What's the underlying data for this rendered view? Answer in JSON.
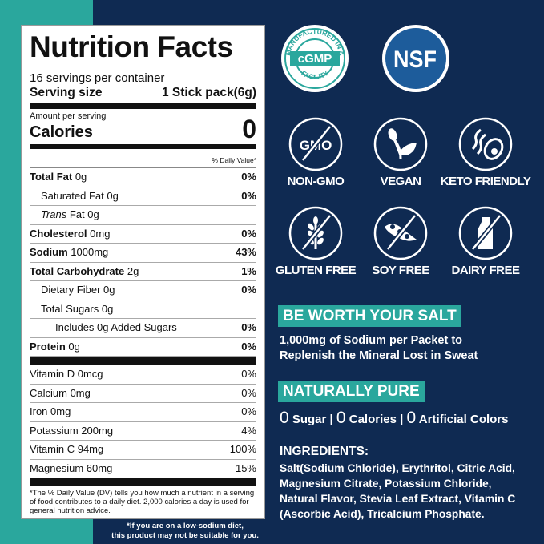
{
  "colors": {
    "teal": "#2aa79d",
    "navy": "#0f2a52",
    "nsf_blue": "#1d5c9b"
  },
  "label": {
    "title": "Nutrition Facts",
    "servings": "16 servings per container",
    "serving_size_label": "Serving size",
    "serving_size_value": "1 Stick pack(6g)",
    "amount_per_serving": "Amount per serving",
    "calories_label": "Calories",
    "calories_value": "0",
    "dv_header": "% Daily Value*",
    "rows": [
      {
        "name": "Total Fat",
        "amount": "0g",
        "dv": "0%"
      },
      {
        "name": "Saturated Fat",
        "amount": "0g",
        "dv": "0%"
      },
      {
        "name": "Trans",
        "amount": "Fat 0g",
        "dv": ""
      },
      {
        "name": "Cholesterol",
        "amount": "0mg",
        "dv": "0%"
      },
      {
        "name": "Sodium",
        "amount": "1000mg",
        "dv": "43%"
      },
      {
        "name": "Total Carbohydrate",
        "amount": "2g",
        "dv": "1%"
      },
      {
        "name": "Dietary Fiber",
        "amount": "0g",
        "dv": "0%"
      },
      {
        "name": "Total Sugars",
        "amount": "0g",
        "dv": ""
      },
      {
        "name": "Includes 0g Added Sugars",
        "amount": "",
        "dv": "0%"
      },
      {
        "name": "Protein",
        "amount": "0g",
        "dv": "0%"
      }
    ],
    "vitamins": [
      {
        "name": "Vitamin D 0mcg",
        "dv": "0%"
      },
      {
        "name": "Calcium 0mg",
        "dv": "0%"
      },
      {
        "name": "Iron 0mg",
        "dv": "0%"
      },
      {
        "name": "Potassium 200mg",
        "dv": "4%"
      },
      {
        "name": "Vitamin C 94mg",
        "dv": "100%"
      },
      {
        "name": "Magnesium 60mg",
        "dv": "15%"
      }
    ],
    "footnote": "*The % Daily Value (DV) tells you how much a nutrient in a serving of food contributes to a daily diet. 2,000 calories a day is used for general nutrition advice."
  },
  "sodium_note_1": "*If you are on a low-sodium diet,",
  "sodium_note_2": "this product may not be suitable for you.",
  "badges": {
    "cgmp_center": "cGMP",
    "cgmp_ring": "MANUFACTURED IN A",
    "cgmp_ring_bottom": "FACILITY",
    "nsf": "NSF"
  },
  "icons": [
    {
      "icon": "gmo-crossed-icon",
      "label": "NON-GMO"
    },
    {
      "icon": "leaf-icon",
      "label": "VEGAN"
    },
    {
      "icon": "bacon-avocado-icon",
      "label": "KETO FRIENDLY"
    },
    {
      "icon": "wheat-crossed-icon",
      "label": "GLUTEN FREE"
    },
    {
      "icon": "soybean-crossed-icon",
      "label": "SOY FREE"
    },
    {
      "icon": "milk-bottle-crossed-icon",
      "label": "DAIRY FREE"
    }
  ],
  "salt": {
    "heading": "BE WORTH YOUR SALT",
    "line1": "1,000mg of Sodium per Packet to",
    "line2": "Replenish the Mineral Lost in Sweat"
  },
  "pure": {
    "heading": "NATURALLY PURE",
    "z1": "0",
    "t1": " Sugar | ",
    "z2": "0",
    "t2": " Calories | ",
    "z3": "0",
    "t3": " Artificial Colors"
  },
  "ingredients": {
    "heading": "INGREDIENTS:",
    "lines": [
      "Salt(Sodium Chloride), Erythritol, Citric Acid,",
      "Magnesium Citrate, Potassium Chloride,",
      "Natural Flavor, Stevia Leaf Extract, Vitamin C",
      "(Ascorbic Acid), Tricalcium Phosphate."
    ]
  }
}
